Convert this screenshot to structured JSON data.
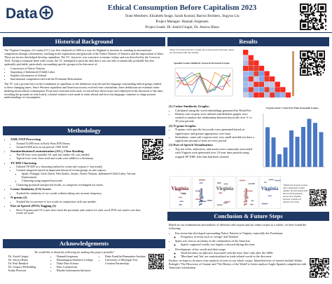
{
  "header": {
    "logo": "Data",
    "title": "Ethical Consumption Before Capitalism 2023",
    "team": "Team Members: Elizabeth Seage, Sarah Konrad, Barron Brothers, Jingyun Liu",
    "manager": "Project Manager: Hannah Jorgensen",
    "leads": "Project Leads: Dr. Astrid Giugni, Dr. Jessica Hines"
  },
  "background": {
    "heading": "Historical Background",
    "intro": "The Virginia Company of London (VC) was first chartered in 1606 as a way for England to increase its standing in international competition through colonization, resulting in the exploitation and genocide of the Native Nations of America and the importation of labor. These are factors that helped develop capitalism. The VC, however, was a massive economic failure and was dissolved by the Crown in 1624. Trying to integrate these early issues, the VC attempted to push the idea that it was not only economically profitable but also spiritually profitable, particularly surrounding specific groups in the discourse of:",
    "bullets": [
      "Conversion of Native Nations",
      "Importing of Indentured (Child) Labor",
      "English colonization of Ireland",
      "International competition tied with the Protestant Reformation"
    ],
    "closing": "The VC was a pivotal force in the foundation of capitalism as the definition of profit and the language surrounding ethical groups shifted to these changing times. Since Western capitalism and American society evolved from colonialism, these definitions are essential when thinking about ethical consumption. From texts read and tools used, we traced how these terms were deployed in the discourse of the time, revealing the grounds on which early colonial ventures were made to seem ethical and how this language continues to shape present understandings of consumption."
  },
  "methodology": {
    "heading": "Methodology",
    "steps": [
      {
        "title": "XML/VEP Processing",
        "points": [
          "Around 52,000 texts in Early Print (EP) library.",
          "Around 8,000 texts in our period: 1590-1639"
        ]
      },
      {
        "title": "Standardization/Lemmatization (S/L), Close Reading",
        "points": [
          "The EP texts were partially S/L and, but further S/L was needed.",
          "Topical texts were close-read and words were added to a dictionary."
        ]
      },
      {
        "title": "TF-IDF Clustering",
        "points": [
          "Utilized TF-IDF as a clustering method to create sub-corpora (+ keywords)",
          "Created categories based on important historical events/groups in sub-corpora:",
          [
            "Spain, Portugal, Irish, Dutch, West Indies, Jesuits, Native Nations, Indentured Child Labor, African Enslavement",
            "Clustering using targeted keywords"
          ],
          "Clustering produced unexpected results, so categories overlapped too much."
        ]
      },
      {
        "title": "Cosine Similarity (CS) Scores",
        "points": [
          "Tracked the similarity of two words without taking into account frequency."
        ]
      },
      {
        "title": "N-grams (2)",
        "points": [
          "Tracked the occurrence of two words in conjunction with one another."
        ]
      },
      {
        "title": "Part of Speech (POS) Tagging (3)",
        "points": [
          "Since N-grams and CS scores don't track the proximity and context for each word, POS was used to see how words are used."
        ]
      }
    ]
  },
  "acknowledgements": {
    "heading": "Acknowledgements",
    "thanks": "We would like to thank the following for making this project possible!",
    "people": [
      "Dr. Astrid Giugni",
      "Dr. Jessica Hines",
      "Dr. Paul Bendich",
      "Dr. Gregory Herbolding",
      "Kathy Peterson",
      "Hannah Jorgensen",
      "Bloomington-Southern College",
      "Duke Data Science",
      "Bass Connections",
      "Rhodes Information Initiative",
      "Duke Franklin Humanities Institute",
      "University of Michigan Text Creation Partnership"
    ]
  },
  "results": {
    "heading": "Results",
    "figure_note": "These CS scores track how closely the words used in each sub-corpus are associated with one another.",
    "figure_title": "Spanish Cosine Similarity Scores in Procured Corpus",
    "graphs": [
      {
        "title": "(1) Cosine Similarity Graphs:",
        "points": [
          "Calculated using the word embeddings generated by Word2Vec",
          "Distinct sub-corpora were utilized and different graphs were created to analyze the relationship between keywords over 5- to 10-year periods."
        ]
      },
      {
        "title": "(2) N-gram Graphs:",
        "points": [
          "N-grams with specific keywords were generated based on significance and greater appearance over time.",
          "Sometimes, some sub-corpora were very small and did not have a significant amount of texts in every period"
        ]
      },
      {
        "title": "(3) Part of Speech Visualization:",
        "points": [
          "Top ten verbs, adjectives, and nouns most commonly associated with Virginia were generated over 10-year time periods using original EP XML files that had been cleaned"
        ]
      }
    ],
    "chart_title": "N-gram Chart: Cruel Over Time in Spanish Corpus",
    "cloud_word": "Virginia",
    "cloud_note": "*While the N-gram corpus only comprised a small number of texts found with EP, the POS analysis shows how Virginia became a subject of interest over time."
  },
  "conclusion": {
    "heading": "Conclusion & Future Steps",
    "intro": "Based on our examinations and analysis of different sub-corpora and our entire corpus as a whole, we have found the following:",
    "findings": [
      {
        "text": "Key terms that developed surrounding Native Nations in Virginia, especially the Powhatans",
        "points": [
          "Frequency of terms such as 'savage' and 'heathen'"
        ]
      },
      {
        "text": "Spain was seen as an enemy in the colonization of the Americas",
        "points": [
          "Spain's supposed cruelty was largely criticized during this time"
        ]
      },
      {
        "text": "Development of key words and their usage",
        "points": [
          "Word becomes an adjective associated with the term 'fruit' only after the 1600s",
          "'Merchant' and 'fair' are contextualized as trade related words in the discourse"
        ]
      }
    ],
    "future": "Further, we hope to do more close analysis of texts in our whole corpus. Identified texts of interest include Walter Raleigh's 'The Discovery of Guiana' and 'The History of the World' to better analyze Anglo-Spanish competition with American colonization."
  }
}
